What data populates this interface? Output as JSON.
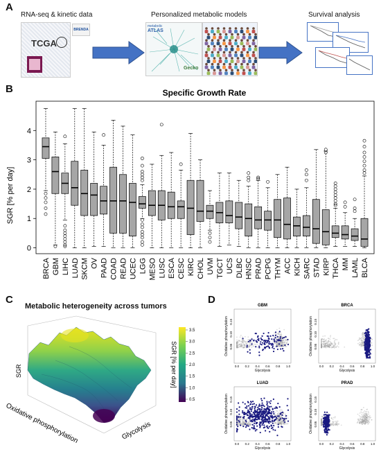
{
  "panel_a": {
    "letter": "A",
    "step1": "RNA-seq & kinetic data",
    "step2": "Personalized metabolic models",
    "step3": "Survival analysis",
    "tcga": "TCGA",
    "brenda": "BRENDA",
    "metabolic_atlas_line1": "metabolic",
    "metabolic_atlas_line2": "ATLAS",
    "gecko": "Gecko",
    "arrow_color": "#4472c4"
  },
  "panel_b": {
    "letter": "B",
    "chart_data": {
      "type": "box",
      "title": "Specific Growth Rate",
      "ylabel": "SGR [% per day]",
      "ylim": [
        -0.2,
        5.0
      ],
      "yticks": [
        0,
        1,
        2,
        3,
        4
      ],
      "categories": [
        "BRCA",
        "GBM",
        "LIHC",
        "LUAD",
        "SKCM",
        "OV",
        "PAAD",
        "COAD",
        "READ",
        "UCEC",
        "LGG",
        "MESO",
        "LUSC",
        "ESCA",
        "CESC",
        "KIRC",
        "CHOL",
        "UVM",
        "TGCT",
        "UCS",
        "DLBC",
        "HNSC",
        "PRAD",
        "PCPG",
        "THYM",
        "ACC",
        "KICH",
        "SARC",
        "STAD",
        "KIRP",
        "THCA",
        "MM",
        "LAML",
        "BLCA"
      ],
      "boxes": [
        {
          "q1": 3.05,
          "median": 3.45,
          "q3": 3.75,
          "lo": 1.95,
          "hi": 4.75,
          "outliers": [
            1.85,
            1.7,
            1.55,
            1.35,
            1.15
          ]
        },
        {
          "q1": 1.85,
          "median": 2.6,
          "q3": 3.1,
          "lo": 0.1,
          "hi": 3.95,
          "outliers": [
            0.05
          ]
        },
        {
          "q1": 1.85,
          "median": 2.2,
          "q3": 2.55,
          "lo": 0.95,
          "hi": 3.55,
          "outliers": [
            3.8,
            0.75,
            0.6,
            0.5,
            0.4,
            0.3,
            0.2,
            0.1,
            0.05
          ]
        },
        {
          "q1": 1.45,
          "median": 2.05,
          "q3": 2.95,
          "lo": 0.0,
          "hi": 4.75,
          "outliers": []
        },
        {
          "q1": 1.1,
          "median": 1.85,
          "q3": 2.65,
          "lo": 0.0,
          "hi": 4.75,
          "outliers": []
        },
        {
          "q1": 1.1,
          "median": 1.8,
          "q3": 2.2,
          "lo": 0.05,
          "hi": 3.95,
          "outliers": []
        },
        {
          "q1": 1.15,
          "median": 1.6,
          "q3": 2.1,
          "lo": 0.05,
          "hi": 3.5,
          "outliers": [
            3.85
          ]
        },
        {
          "q1": 0.5,
          "median": 1.6,
          "q3": 2.75,
          "lo": 0.0,
          "hi": 4.35,
          "outliers": []
        },
        {
          "q1": 0.5,
          "median": 1.6,
          "q3": 2.5,
          "lo": 0.0,
          "hi": 4.15,
          "outliers": []
        },
        {
          "q1": 0.4,
          "median": 1.55,
          "q3": 2.2,
          "lo": 0.0,
          "hi": 3.85,
          "outliers": []
        },
        {
          "q1": 1.35,
          "median": 1.5,
          "q3": 1.75,
          "lo": 1.0,
          "hi": 2.15,
          "outliers": [
            3.05,
            2.8,
            2.6,
            2.5,
            2.4,
            2.3,
            0.95,
            0.8,
            0.7,
            0.55,
            0.45,
            0.35,
            0.2,
            0.1
          ]
        },
        {
          "q1": 1.1,
          "median": 1.45,
          "q3": 1.95,
          "lo": 0.0,
          "hi": 2.85,
          "outliers": []
        },
        {
          "q1": 0.95,
          "median": 1.45,
          "q3": 1.95,
          "lo": 0.0,
          "hi": 3.15,
          "outliers": [
            4.2
          ]
        },
        {
          "q1": 1.0,
          "median": 1.4,
          "q3": 1.9,
          "lo": 0.0,
          "hi": 3.25,
          "outliers": []
        },
        {
          "q1": 1.0,
          "median": 1.4,
          "q3": 1.6,
          "lo": 0.0,
          "hi": 2.65,
          "outliers": [
            2.85
          ]
        },
        {
          "q1": 0.45,
          "median": 1.35,
          "q3": 2.3,
          "lo": 0.0,
          "hi": 3.9,
          "outliers": []
        },
        {
          "q1": 0.9,
          "median": 1.25,
          "q3": 2.3,
          "lo": 0.0,
          "hi": 3.0,
          "outliers": []
        },
        {
          "q1": 1.0,
          "median": 1.25,
          "q3": 1.45,
          "lo": 0.6,
          "hi": 1.95,
          "outliers": [
            0.5,
            0.35,
            0.2
          ]
        },
        {
          "q1": 0.85,
          "median": 1.2,
          "q3": 1.55,
          "lo": 0.05,
          "hi": 2.55,
          "outliers": []
        },
        {
          "q1": 0.85,
          "median": 1.1,
          "q3": 1.6,
          "lo": 0.1,
          "hi": 2.55,
          "outliers": []
        },
        {
          "q1": 0.65,
          "median": 1.05,
          "q3": 1.55,
          "lo": 0.05,
          "hi": 2.3,
          "outliers": []
        },
        {
          "q1": 0.4,
          "median": 1.0,
          "q3": 1.5,
          "lo": 0.0,
          "hi": 2.1,
          "outliers": [
            2.55,
            2.4,
            2.3
          ]
        },
        {
          "q1": 0.65,
          "median": 0.95,
          "q3": 1.4,
          "lo": 0.0,
          "hi": 2.3,
          "outliers": [
            2.4,
            2.35
          ]
        },
        {
          "q1": 0.6,
          "median": 0.95,
          "q3": 1.25,
          "lo": 0.0,
          "hi": 2.05,
          "outliers": [
            2.25
          ]
        },
        {
          "q1": 0.35,
          "median": 0.95,
          "q3": 1.65,
          "lo": 0.0,
          "hi": 2.5,
          "outliers": []
        },
        {
          "q1": 0.3,
          "median": 0.8,
          "q3": 1.7,
          "lo": 0.0,
          "hi": 2.75,
          "outliers": []
        },
        {
          "q1": 0.4,
          "median": 0.75,
          "q3": 1.05,
          "lo": 0.0,
          "hi": 2.0,
          "outliers": []
        },
        {
          "q1": 0.4,
          "median": 0.7,
          "q3": 1.1,
          "lo": 0.0,
          "hi": 2.05,
          "outliers": [
            2.65,
            2.5,
            2.3
          ]
        },
        {
          "q1": 0.15,
          "median": 0.65,
          "q3": 1.65,
          "lo": 0.0,
          "hi": 3.35,
          "outliers": []
        },
        {
          "q1": 0.1,
          "median": 0.55,
          "q3": 1.3,
          "lo": 0.0,
          "hi": 3.3,
          "outliers": [
            3.35,
            3.25
          ]
        },
        {
          "q1": 0.35,
          "median": 0.5,
          "q3": 0.75,
          "lo": 0.05,
          "hi": 1.35,
          "outliers": [
            2.2,
            2.1,
            2.0,
            1.9,
            1.8,
            1.7,
            1.6,
            1.5,
            1.45
          ]
        },
        {
          "q1": 0.3,
          "median": 0.45,
          "q3": 0.75,
          "lo": 0.05,
          "hi": 1.2,
          "outliers": [
            1.55,
            1.4
          ]
        },
        {
          "q1": 0.25,
          "median": 0.4,
          "q3": 0.65,
          "lo": 0.05,
          "hi": 1.0,
          "outliers": [
            1.65,
            1.35,
            1.25
          ]
        },
        {
          "q1": 0.05,
          "median": 0.3,
          "q3": 1.0,
          "lo": 0.0,
          "hi": 2.45,
          "outliers": [
            3.65,
            3.45,
            3.25,
            3.1,
            2.95,
            2.8,
            2.65,
            2.55
          ]
        }
      ]
    }
  },
  "panel_c": {
    "letter": "C",
    "title": "Metabolic heterogeneity across tumors",
    "z_label": "SGR",
    "x_label": "Oxidative phosphorylation",
    "y_label": "Glycolysis",
    "colorbar_label": "SGR [% per day]",
    "colorbar_ticks": [
      "3.5",
      "3.0",
      "2.5",
      "2.0",
      "1.5",
      "1.0",
      "0.5"
    ]
  },
  "panel_d": {
    "letter": "D",
    "chart_data": [
      {
        "type": "scatter",
        "title": "GBM",
        "xlabel": "Glycolysis",
        "ylabel": "Oxidative phosphorylation",
        "xticks": [
          "0.0",
          "0.2",
          "0.4",
          "0.6",
          "0.8",
          "1.0"
        ],
        "yticks": [
          "0.05",
          "0.10",
          "0.15"
        ]
      },
      {
        "type": "scatter",
        "title": "BRCA",
        "xlabel": "Glycolysis",
        "ylabel": "Oxidative phosphorylation",
        "xticks": [
          "0.0",
          "0.2",
          "0.4",
          "0.6",
          "0.8",
          "1.0"
        ],
        "yticks": [
          "0.05",
          "0.10",
          "0.15"
        ]
      },
      {
        "type": "scatter",
        "title": "LUAD",
        "xlabel": "Glycolysis",
        "ylabel": "Oxidative phosphorylation",
        "xticks": [
          "0.0",
          "0.2",
          "0.4",
          "0.6",
          "0.8",
          "1.0"
        ],
        "yticks": [
          "0.05",
          "0.10",
          "0.15"
        ]
      },
      {
        "type": "scatter",
        "title": "PRAD",
        "xlabel": "Glycolysis",
        "ylabel": "Oxidative phosphorylation",
        "xticks": [
          "0.0",
          "0.2",
          "0.4",
          "0.6",
          "0.8",
          "1.0"
        ],
        "yticks": [
          "0.05",
          "0.10",
          "0.15"
        ]
      }
    ],
    "highlight_color": "#1a1a80",
    "background_color": "#9a9a9a"
  }
}
